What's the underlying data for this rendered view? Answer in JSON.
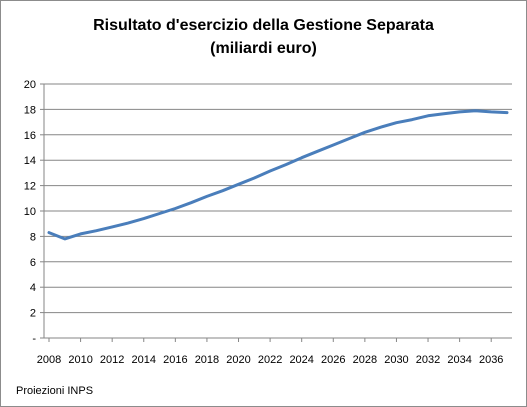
{
  "chart_data": {
    "type": "line",
    "title_lines": [
      "Risultato d'esercizio della Gestione Separata",
      "(miliardi euro)"
    ],
    "x_tick_labels": [
      "2008",
      "2010",
      "2012",
      "2014",
      "2016",
      "2018",
      "2020",
      "2022",
      "2024",
      "2026",
      "2028",
      "2030",
      "2032",
      "2034",
      "2036"
    ],
    "y_tick_labels": [
      "-",
      "2",
      "4",
      "6",
      "8",
      "10",
      "12",
      "14",
      "16",
      "18",
      "20"
    ],
    "ylim": [
      0,
      20
    ],
    "xlim": [
      2008,
      2037
    ],
    "grid": true,
    "legend": "none",
    "series": [
      {
        "color": "#4a7ebb",
        "x": [
          2008,
          2009,
          2010,
          2011,
          2012,
          2013,
          2014,
          2015,
          2016,
          2017,
          2018,
          2019,
          2020,
          2021,
          2022,
          2023,
          2024,
          2025,
          2026,
          2027,
          2028,
          2029,
          2030,
          2031,
          2032,
          2033,
          2034,
          2035,
          2036,
          2037
        ],
        "values": [
          8.3,
          7.8,
          8.2,
          8.45,
          8.75,
          9.05,
          9.4,
          9.8,
          10.2,
          10.65,
          11.15,
          11.6,
          12.1,
          12.6,
          13.15,
          13.65,
          14.2,
          14.7,
          15.2,
          15.7,
          16.2,
          16.6,
          16.95,
          17.2,
          17.5,
          17.65,
          17.8,
          17.9,
          17.8,
          17.75
        ]
      }
    ],
    "source_note": "Proiezioni INPS"
  }
}
